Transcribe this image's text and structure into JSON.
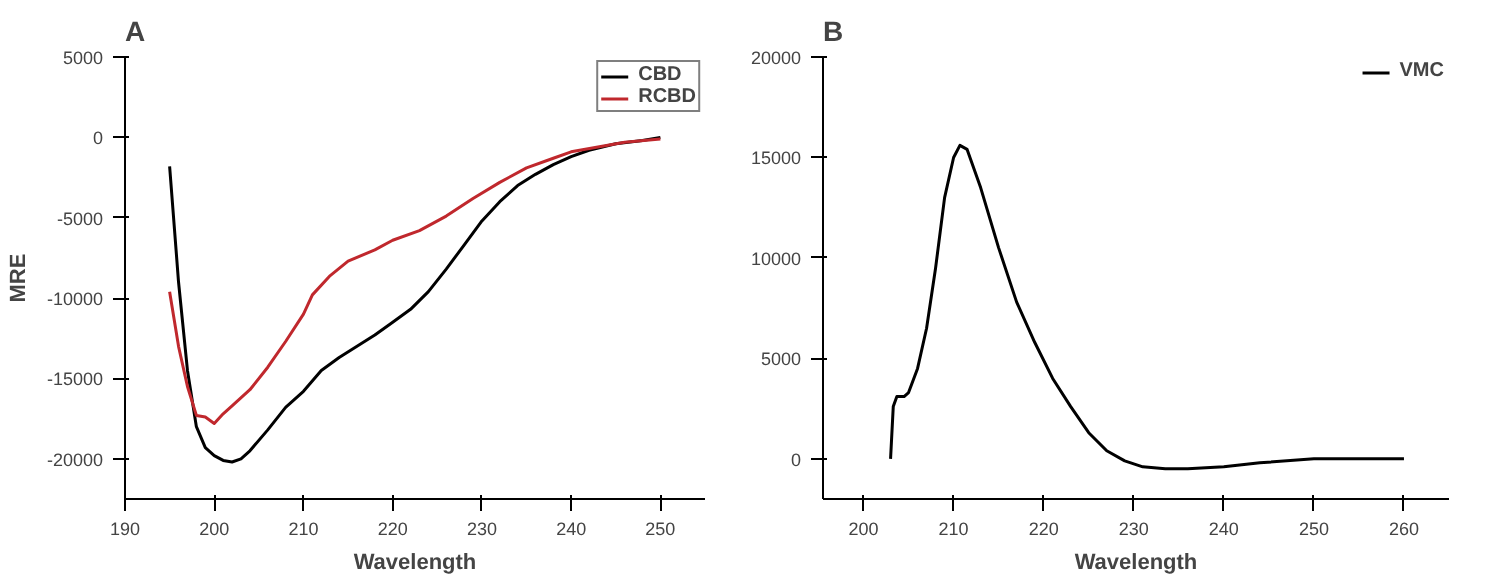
{
  "chart_data": [
    {
      "type": "line",
      "title": "A",
      "xlabel": "Wavelength",
      "ylabel": "MRE",
      "xlim": [
        190,
        255
      ],
      "ylim": [
        -22500,
        5000
      ],
      "xticks": [
        190,
        200,
        210,
        220,
        230,
        240,
        250
      ],
      "yticks": [
        -20000,
        -15000,
        -10000,
        -5000,
        0,
        5000
      ],
      "grid": false,
      "legend": "top right",
      "series": [
        {
          "name": "CBD",
          "color": "#000000",
          "x": [
            195,
            196,
            197,
            198,
            199,
            200,
            201,
            202,
            203,
            204,
            206,
            208,
            210,
            212,
            214,
            216,
            218,
            220,
            222,
            224,
            226,
            228,
            230,
            232,
            234,
            236,
            238,
            240,
            242,
            245,
            248,
            250
          ],
          "values": [
            -1800,
            -9000,
            -14500,
            -18000,
            -19300,
            -19800,
            -20100,
            -20200,
            -20000,
            -19500,
            -18200,
            -16800,
            -15800,
            -14500,
            -13700,
            -13000,
            -12300,
            -11500,
            -10700,
            -9600,
            -8200,
            -6700,
            -5200,
            -4000,
            -3000,
            -2300,
            -1700,
            -1200,
            -800,
            -400,
            -200,
            0
          ]
        },
        {
          "name": "RCBD",
          "color": "#c0282d",
          "x": [
            195,
            196,
            197,
            198,
            199,
            200,
            201,
            202,
            204,
            206,
            208,
            210,
            211,
            213,
            215,
            218,
            220,
            223,
            226,
            229,
            232,
            235,
            238,
            240,
            243,
            246,
            250
          ],
          "values": [
            -9600,
            -13000,
            -15500,
            -17300,
            -17400,
            -17800,
            -17200,
            -16700,
            -15700,
            -14300,
            -12700,
            -11000,
            -9800,
            -8600,
            -7700,
            -7000,
            -6400,
            -5800,
            -4900,
            -3800,
            -2800,
            -1900,
            -1300,
            -900,
            -600,
            -300,
            -100
          ]
        }
      ]
    },
    {
      "type": "line",
      "title": "B",
      "xlabel": "Wavelength",
      "xlim": [
        195.5,
        265
      ],
      "ylim": [
        -2000,
        20000
      ],
      "xticks": [
        200,
        210,
        220,
        230,
        240,
        250,
        260
      ],
      "yticks": [
        0,
        5000,
        10000,
        15000,
        20000
      ],
      "grid": false,
      "legend": "top right",
      "series": [
        {
          "name": "VMC",
          "color": "#000000",
          "x": [
            203,
            203.3,
            203.7,
            204.5,
            205,
            206,
            207,
            208,
            209,
            210,
            210.7,
            211.5,
            213,
            215,
            217,
            219,
            221,
            223,
            225,
            227,
            229,
            231,
            233.5,
            236,
            240,
            244,
            250,
            255,
            260
          ],
          "values": [
            0,
            2600,
            3100,
            3100,
            3300,
            4500,
            6500,
            9500,
            13000,
            15000,
            15600,
            15400,
            13500,
            10500,
            7800,
            5800,
            4000,
            2600,
            1300,
            400,
            -100,
            -400,
            -500,
            -500,
            -400,
            -200,
            0,
            0,
            0
          ]
        }
      ]
    }
  ]
}
